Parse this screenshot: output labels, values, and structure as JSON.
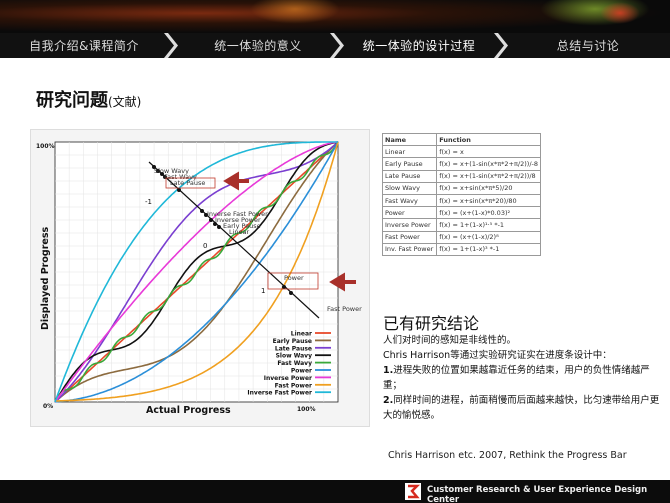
{
  "nav": {
    "tabs": [
      {
        "label": "自我介绍&课程简介",
        "active": false
      },
      {
        "label": "统一体验的意义",
        "active": false
      },
      {
        "label": "统一体验的设计过程",
        "active": true
      },
      {
        "label": "总结与讨论",
        "active": false
      }
    ]
  },
  "heading": {
    "main": "研究问题",
    "sub": "(文献)"
  },
  "chart_data": {
    "type": "line",
    "xlabel": "Actual Progress",
    "ylabel": "Displayed Progress",
    "x_ticks": [
      "0%",
      "100%"
    ],
    "y_ticks": [
      "0%",
      "100%"
    ],
    "xlim": [
      0,
      100
    ],
    "ylim": [
      0,
      100
    ],
    "legend_position": "bottom-right",
    "series": [
      {
        "name": "Linear",
        "color": "#e8492a"
      },
      {
        "name": "Early Pause",
        "color": "#8c6b3f"
      },
      {
        "name": "Late Pause",
        "color": "#7a3fd0"
      },
      {
        "name": "Slow Wavy",
        "color": "#111111"
      },
      {
        "name": "Fast Wavy",
        "color": "#3aa83a"
      },
      {
        "name": "Power",
        "color": "#2b8fd8"
      },
      {
        "name": "Inverse Power",
        "color": "#e83ad8"
      },
      {
        "name": "Fast Power",
        "color": "#f0a020"
      },
      {
        "name": "Inverse Fast Power",
        "color": "#20b8d8"
      }
    ],
    "annotations": [
      "Slow Wavy",
      "Fast Wavy",
      "Late Pause",
      "Inverse Fast Power",
      "Inverse Power",
      "Early Pause",
      "Linear",
      "Power",
      "Fast Power"
    ],
    "diag_ticks": [
      "-1",
      "0",
      "1"
    ]
  },
  "table": {
    "headers": [
      "Name",
      "Function"
    ],
    "rows": [
      [
        "Linear",
        "f(x) = x"
      ],
      [
        "Early Pause",
        "f(x) = x+(1-sin(x*π*2+π/2))/-8"
      ],
      [
        "Late Pause",
        "f(x) = x+(1-sin(x*π*2+π/2))/8"
      ],
      [
        "Slow Wavy",
        "f(x) = x+sin(x*π*5)/20"
      ],
      [
        "Fast Wavy",
        "f(x) = x+sin(x*π*20)/80"
      ],
      [
        "Power",
        "f(x) = (x+(1-x)*0.03)²"
      ],
      [
        "Inverse Power",
        "f(x) = 1+(1-x)¹·⁵ *-1"
      ],
      [
        "Fast Power",
        "f(x) = (x+(1-x)/2)⁸"
      ],
      [
        "Inv. Fast Power",
        "f(x) = 1+(1-x)³ *-1"
      ]
    ]
  },
  "conclusion": {
    "title": "已有研究结论",
    "line1": "人们对时间的感知是非线性的。",
    "line2": "Chris Harrison等通过实验研究证实在进度条设计中：",
    "item1_num": "1.",
    "item1": "进程失败的位置如果越靠近任务的结束，用户的负性情绪越严重；",
    "item2_num": "2.",
    "item2": "同样时间的进程，前面稍慢而后面越来越快，比匀速带给用户更大的愉悦感。",
    "citation": "Chris Harrison etc. 2007, Rethink the Progress Bar"
  },
  "footer": {
    "text": "Customer Research & User Experience Design Center"
  }
}
